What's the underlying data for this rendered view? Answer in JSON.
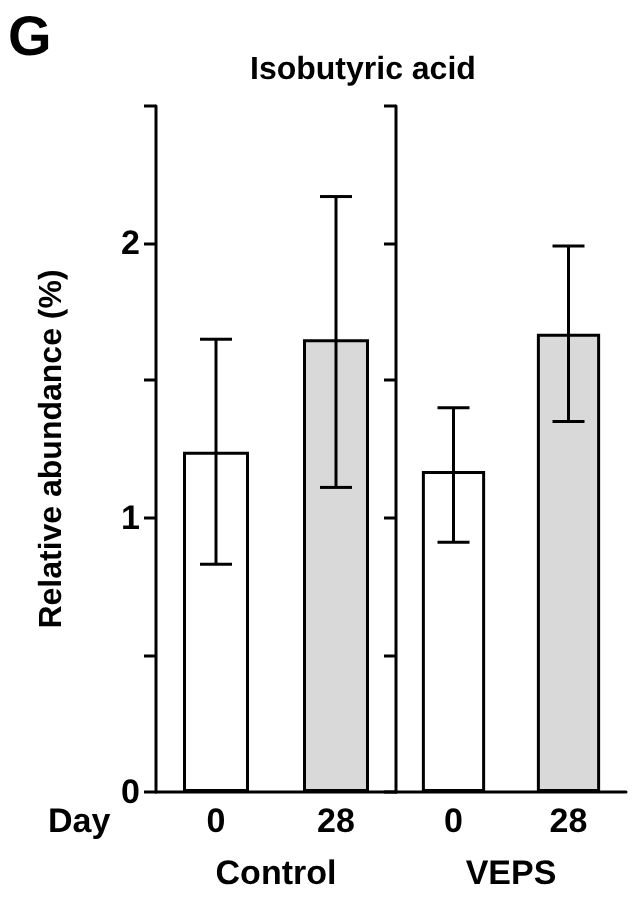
{
  "chart_data": [
    {
      "type": "bar",
      "title": "Isobutyric acid",
      "ylabel": "Relative abundance (%)",
      "xlabel": "Control",
      "annotations": [
        "G",
        "Day"
      ],
      "categories": [
        "0",
        "28"
      ],
      "values": [
        1.24,
        1.65
      ],
      "colors": [
        "#ffffff",
        "#d9d9d9"
      ],
      "errors": [
        [
          0.83,
          1.65
        ],
        [
          1.11,
          2.17
        ]
      ],
      "ylim": [
        0,
        2.5
      ],
      "yticks": [
        0,
        {
          "value": 0.5,
          "label": null
        },
        1,
        {
          "value": 1.5,
          "label": null
        },
        2,
        {
          "value": 2.5,
          "label": null
        }
      ]
    },
    {
      "type": "bar",
      "xlabel": "VEPS",
      "categories": [
        "0",
        "28"
      ],
      "values": [
        1.17,
        1.67
      ],
      "colors": [
        "#ffffff",
        "#d9d9d9"
      ],
      "errors": [
        [
          0.91,
          1.4
        ],
        [
          1.35,
          1.99
        ]
      ],
      "ylim": [
        0,
        2.5
      ],
      "yticks": [
        0,
        {
          "value": 0.5,
          "label": null
        },
        1,
        {
          "value": 1.5,
          "label": null
        },
        2,
        {
          "value": 2.5,
          "label": null
        }
      ],
      "tick_labels": "x"
    }
  ]
}
